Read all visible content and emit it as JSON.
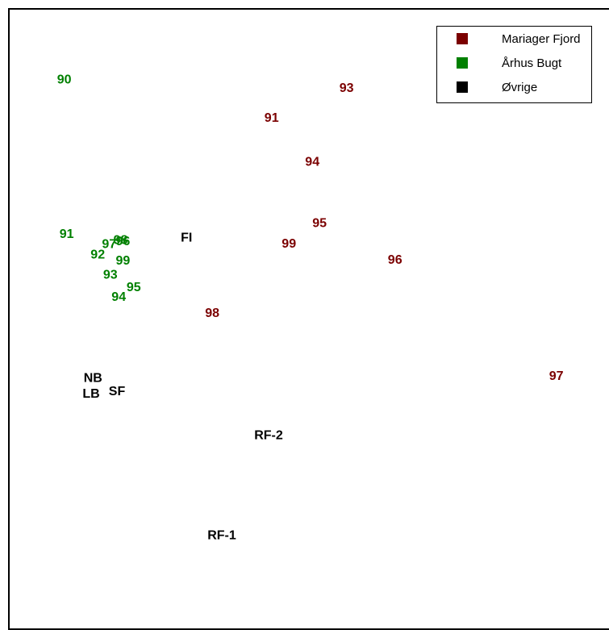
{
  "chart_data": {
    "type": "scatter",
    "title": "",
    "xlabel": "",
    "ylabel": "",
    "grid": false,
    "legend_position": "top-right",
    "xlim": [
      0,
      100
    ],
    "ylim": [
      0,
      100
    ],
    "series": [
      {
        "name": "Mariager Fjord",
        "color": "#7B0000",
        "points": [
          {
            "label": "93",
            "x": 56.2,
            "y": 87.0
          },
          {
            "label": "91",
            "x": 43.7,
            "y": 82.1
          },
          {
            "label": "94",
            "x": 50.5,
            "y": 74.8
          },
          {
            "label": "95",
            "x": 51.7,
            "y": 64.7
          },
          {
            "label": "99",
            "x": 46.6,
            "y": 61.3
          },
          {
            "label": "96",
            "x": 64.3,
            "y": 58.6
          },
          {
            "label": "98",
            "x": 33.8,
            "y": 49.8
          },
          {
            "label": "97",
            "x": 91.2,
            "y": 39.4
          }
        ]
      },
      {
        "name": "Århus Bugt",
        "color": "#008000",
        "points": [
          {
            "label": "90",
            "x": 9.1,
            "y": 88.4
          },
          {
            "label": "91",
            "x": 9.5,
            "y": 62.9
          },
          {
            "label": "97",
            "x": 16.6,
            "y": 61.2
          },
          {
            "label": "98",
            "x": 18.5,
            "y": 61.9
          },
          {
            "label": "96",
            "x": 18.9,
            "y": 61.7
          },
          {
            "label": "92",
            "x": 14.7,
            "y": 59.5
          },
          {
            "label": "99",
            "x": 18.9,
            "y": 58.5
          },
          {
            "label": "93",
            "x": 16.8,
            "y": 56.1
          },
          {
            "label": "95",
            "x": 20.7,
            "y": 54.1
          },
          {
            "label": "94",
            "x": 18.2,
            "y": 52.5
          }
        ]
      },
      {
        "name": "Øvrige",
        "color": "#000000",
        "points": [
          {
            "label": "FI",
            "x": 29.5,
            "y": 62.3
          },
          {
            "label": "NB",
            "x": 13.9,
            "y": 39.1
          },
          {
            "label": "LB",
            "x": 13.6,
            "y": 36.5
          },
          {
            "label": "SF",
            "x": 17.9,
            "y": 36.9
          },
          {
            "label": "RF-2",
            "x": 43.2,
            "y": 29.6
          },
          {
            "label": "RF-1",
            "x": 35.4,
            "y": 13.1
          }
        ]
      }
    ]
  },
  "legend": {
    "items": [
      {
        "label": "Mariager Fjord",
        "color": "#7B0000"
      },
      {
        "label": "Århus Bugt",
        "color": "#008000"
      },
      {
        "label": "Øvrige",
        "color": "#000000"
      }
    ]
  }
}
